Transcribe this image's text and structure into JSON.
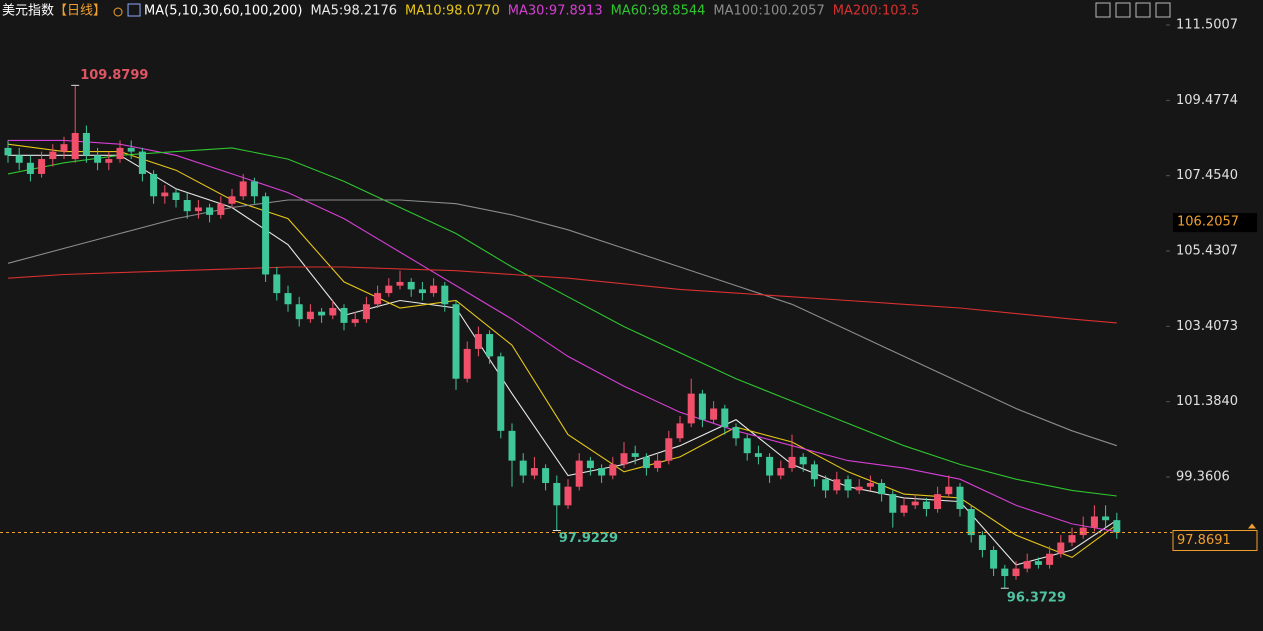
{
  "chart_data": {
    "type": "candlestick",
    "title": "美元指数",
    "period": "【日线】",
    "ma_label": "MA(5,10,30,60,100,200)",
    "up_color": "#f0506a",
    "down_color": "#3fc79a",
    "ylim": [
      95.224,
      112.172
    ],
    "yticks": [
      111.5007,
      109.4774,
      {
        "value": 107.454,
        "label": "107.4540"
      },
      105.4307,
      103.4073,
      {
        "value": 101.384,
        "label": "101.3840"
      },
      99.3606
    ],
    "marker_price": 106.2057,
    "candles": [
      [
        108.2,
        108.4,
        107.8,
        108.0
      ],
      [
        108.0,
        108.2,
        107.6,
        107.8
      ],
      [
        107.8,
        108.0,
        107.3,
        107.5
      ],
      [
        107.5,
        108.1,
        107.4,
        107.9
      ],
      [
        107.9,
        108.3,
        107.7,
        108.1
      ],
      [
        108.1,
        108.5,
        107.9,
        108.3
      ],
      [
        107.9,
        109.8799,
        107.8,
        108.6
      ],
      [
        108.6,
        108.8,
        107.8,
        108.0
      ],
      [
        108.0,
        108.2,
        107.6,
        107.8
      ],
      [
        107.8,
        108.1,
        107.6,
        107.9
      ],
      [
        107.9,
        108.4,
        107.8,
        108.2
      ],
      [
        108.2,
        108.4,
        107.9,
        108.1
      ],
      [
        108.1,
        108.2,
        107.3,
        107.5
      ],
      [
        107.5,
        107.6,
        106.7,
        106.9
      ],
      [
        106.9,
        107.2,
        106.7,
        107.0
      ],
      [
        107.0,
        107.1,
        106.6,
        106.8
      ],
      [
        106.8,
        107.0,
        106.3,
        106.5
      ],
      [
        106.5,
        106.8,
        106.3,
        106.6
      ],
      [
        106.6,
        106.7,
        106.2,
        106.4
      ],
      [
        106.4,
        106.9,
        106.3,
        106.7
      ],
      [
        106.7,
        107.1,
        106.6,
        106.9
      ],
      [
        106.9,
        107.5,
        106.8,
        107.3
      ],
      [
        107.3,
        107.4,
        106.7,
        106.9
      ],
      [
        106.9,
        107.0,
        104.6,
        104.8
      ],
      [
        104.8,
        105.0,
        104.1,
        104.3
      ],
      [
        104.3,
        104.5,
        103.8,
        104.0
      ],
      [
        104.0,
        104.2,
        103.4,
        103.6
      ],
      [
        103.6,
        104.0,
        103.5,
        103.8
      ],
      [
        103.8,
        103.9,
        103.5,
        103.7
      ],
      [
        103.7,
        104.1,
        103.6,
        103.9
      ],
      [
        103.9,
        104.0,
        103.3,
        103.5
      ],
      [
        103.5,
        103.8,
        103.4,
        103.6
      ],
      [
        103.6,
        104.2,
        103.5,
        104.0
      ],
      [
        104.0,
        104.5,
        103.9,
        104.3
      ],
      [
        104.3,
        104.7,
        104.2,
        104.5
      ],
      [
        104.5,
        104.9,
        104.4,
        104.6
      ],
      [
        104.6,
        104.7,
        104.2,
        104.4
      ],
      [
        104.4,
        104.6,
        104.1,
        104.3
      ],
      [
        104.3,
        104.7,
        104.2,
        104.5
      ],
      [
        104.5,
        104.6,
        103.8,
        104.0
      ],
      [
        104.0,
        104.1,
        101.7,
        102.0
      ],
      [
        102.0,
        103.0,
        101.9,
        102.8
      ],
      [
        102.8,
        103.4,
        102.6,
        103.2
      ],
      [
        103.2,
        103.3,
        102.4,
        102.6
      ],
      [
        102.6,
        102.7,
        100.4,
        100.6
      ],
      [
        100.6,
        100.8,
        99.1,
        99.8
      ],
      [
        99.8,
        100.0,
        99.2,
        99.4
      ],
      [
        99.4,
        99.9,
        99.3,
        99.6
      ],
      [
        99.6,
        99.7,
        99.0,
        99.2
      ],
      [
        99.2,
        99.4,
        97.9229,
        98.6
      ],
      [
        98.6,
        99.3,
        98.5,
        99.1
      ],
      [
        99.1,
        100.0,
        99.0,
        99.8
      ],
      [
        99.8,
        99.9,
        99.4,
        99.6
      ],
      [
        99.6,
        99.7,
        99.2,
        99.4
      ],
      [
        99.4,
        99.9,
        99.3,
        99.7
      ],
      [
        99.7,
        100.3,
        99.6,
        100.0
      ],
      [
        100.0,
        100.2,
        99.7,
        99.9
      ],
      [
        99.9,
        100.0,
        99.4,
        99.6
      ],
      [
        99.6,
        100.0,
        99.5,
        99.8
      ],
      [
        99.8,
        100.6,
        99.7,
        100.4
      ],
      [
        100.4,
        101.0,
        100.3,
        100.8
      ],
      [
        100.8,
        102.0,
        100.7,
        101.6
      ],
      [
        101.6,
        101.7,
        100.7,
        100.9
      ],
      [
        100.9,
        101.4,
        100.8,
        101.2
      ],
      [
        101.2,
        101.3,
        100.5,
        100.7
      ],
      [
        100.7,
        100.8,
        100.2,
        100.4
      ],
      [
        100.4,
        100.5,
        99.8,
        100.0
      ],
      [
        100.0,
        100.2,
        99.7,
        99.9
      ],
      [
        99.9,
        100.0,
        99.2,
        99.4
      ],
      [
        99.4,
        99.8,
        99.3,
        99.6
      ],
      [
        99.6,
        100.5,
        99.5,
        99.9
      ],
      [
        99.9,
        100.0,
        99.5,
        99.7
      ],
      [
        99.7,
        99.8,
        99.1,
        99.3
      ],
      [
        99.3,
        99.4,
        98.8,
        99.0
      ],
      [
        99.0,
        99.5,
        98.9,
        99.3
      ],
      [
        99.3,
        99.4,
        98.8,
        99.0
      ],
      [
        99.0,
        99.3,
        98.9,
        99.1
      ],
      [
        99.1,
        99.4,
        99.0,
        99.2
      ],
      [
        99.2,
        99.3,
        98.7,
        98.9
      ],
      [
        98.9,
        99.0,
        98.0,
        98.4
      ],
      [
        98.4,
        98.8,
        98.3,
        98.6
      ],
      [
        98.6,
        98.9,
        98.5,
        98.7
      ],
      [
        98.7,
        98.8,
        98.3,
        98.5
      ],
      [
        98.5,
        99.1,
        98.4,
        98.9
      ],
      [
        98.9,
        99.4,
        98.8,
        99.1
      ],
      [
        99.1,
        99.2,
        98.3,
        98.5
      ],
      [
        98.5,
        98.6,
        97.6,
        97.8
      ],
      [
        97.8,
        97.9,
        97.2,
        97.4
      ],
      [
        97.4,
        97.5,
        96.7,
        96.9
      ],
      [
        96.9,
        97.0,
        96.3729,
        96.7
      ],
      [
        96.7,
        97.1,
        96.6,
        96.9
      ],
      [
        96.9,
        97.3,
        96.8,
        97.1
      ],
      [
        97.1,
        97.2,
        96.9,
        97.0
      ],
      [
        97.0,
        97.5,
        96.9,
        97.3
      ],
      [
        97.3,
        97.8,
        97.2,
        97.6
      ],
      [
        97.6,
        98.0,
        97.5,
        97.8
      ],
      [
        97.8,
        98.3,
        97.7,
        98.0
      ],
      [
        98.0,
        98.6,
        97.9,
        98.3
      ],
      [
        98.3,
        98.6,
        98.0,
        98.2
      ],
      [
        98.2,
        98.4,
        97.7,
        97.8691
      ]
    ],
    "ma_x": [
      0,
      5,
      10,
      15,
      20,
      25,
      30,
      35,
      40,
      45,
      50,
      55,
      60,
      65,
      70,
      75,
      80,
      85,
      90,
      95,
      99
    ],
    "series": [
      {
        "name": "MA5:98.2176",
        "color": "#e8e8e8",
        "values": [
          108.0,
          108.0,
          108.0,
          107.1,
          106.6,
          105.6,
          103.7,
          104.1,
          103.9,
          101.6,
          99.4,
          99.7,
          100.2,
          100.9,
          99.7,
          99.1,
          98.8,
          98.7,
          97.0,
          97.4,
          98.2
        ]
      },
      {
        "name": "MA10:98.0770",
        "color": "#e6c619",
        "values": [
          108.3,
          108.1,
          108.1,
          107.6,
          106.8,
          106.3,
          104.6,
          103.9,
          104.1,
          102.9,
          100.5,
          99.5,
          99.9,
          100.7,
          100.3,
          99.5,
          98.9,
          98.8,
          97.8,
          97.2,
          98.08
        ]
      },
      {
        "name": "MA30:97.8913",
        "color": "#d63fd6",
        "values": [
          108.4,
          108.4,
          108.3,
          108.0,
          107.5,
          107.0,
          106.3,
          105.4,
          104.5,
          103.6,
          102.6,
          101.8,
          101.1,
          100.6,
          100.2,
          99.8,
          99.6,
          99.3,
          98.6,
          98.1,
          97.89
        ]
      },
      {
        "name": "MA60:98.8544",
        "color": "#2fc52f",
        "values": [
          107.5,
          107.8,
          108.0,
          108.1,
          108.2,
          107.9,
          107.3,
          106.6,
          105.9,
          105.0,
          104.2,
          103.4,
          102.7,
          102.0,
          101.4,
          100.8,
          100.2,
          99.7,
          99.3,
          99.0,
          98.85
        ]
      },
      {
        "name": "MA100:100.2057",
        "color": "#8c8c8c",
        "values": [
          105.1,
          105.5,
          105.9,
          106.3,
          106.6,
          106.8,
          106.8,
          106.8,
          106.7,
          106.4,
          106.0,
          105.5,
          105.0,
          104.5,
          104.0,
          103.3,
          102.6,
          101.9,
          101.2,
          100.6,
          100.2
        ]
      },
      {
        "name": "MA200:103.5",
        "color": "#d93030",
        "values": [
          104.7,
          104.8,
          104.85,
          104.9,
          104.95,
          105.0,
          105.0,
          104.95,
          104.9,
          104.8,
          104.7,
          104.55,
          104.4,
          104.3,
          104.2,
          104.1,
          104.0,
          103.9,
          103.75,
          103.6,
          103.5
        ]
      }
    ]
  }
}
